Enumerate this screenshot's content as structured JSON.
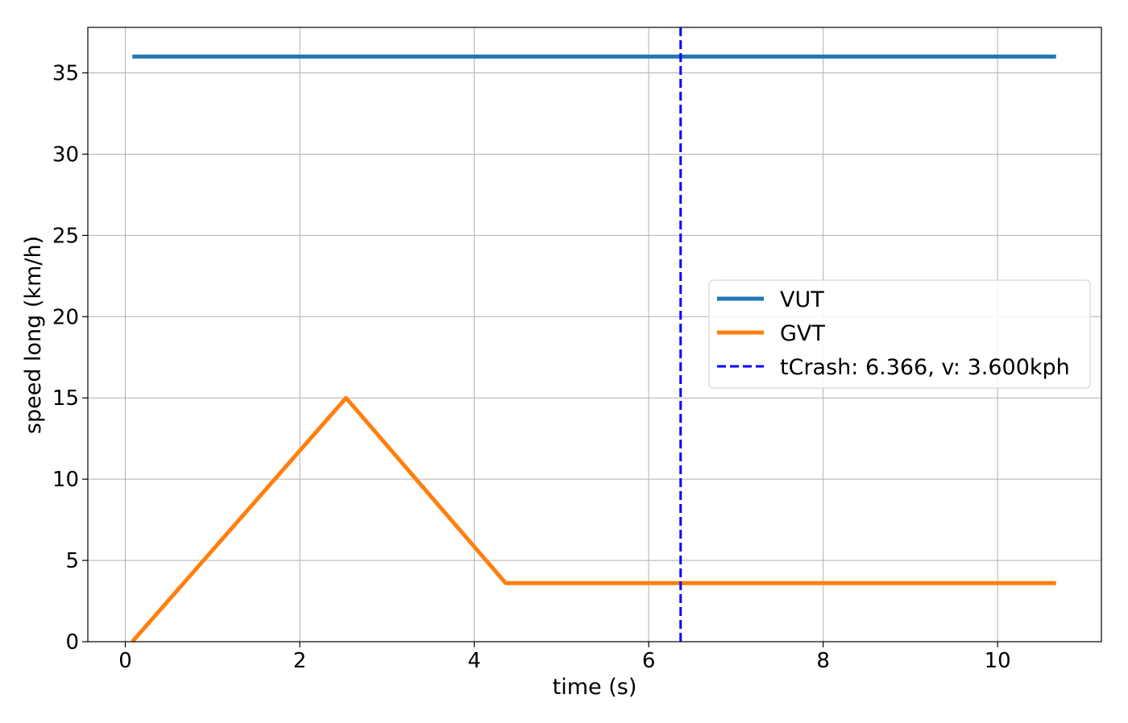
{
  "chart_data": {
    "type": "line",
    "title": "",
    "xlabel": "time (s)",
    "ylabel": "speed long (km/h)",
    "xlim": [
      -0.43,
      11.19
    ],
    "ylim": [
      0,
      37.8
    ],
    "xticks": [
      0,
      2,
      4,
      6,
      8,
      10
    ],
    "yticks": [
      0,
      5,
      10,
      15,
      20,
      25,
      30,
      35
    ],
    "grid": true,
    "legend_position": "center-right",
    "series": [
      {
        "name": "VUT",
        "color": "#1f77b4",
        "style": "solid",
        "x": [
          0.08,
          10.67
        ],
        "y": [
          36.0,
          36.0
        ]
      },
      {
        "name": "GVT",
        "color": "#ff7f0e",
        "style": "solid",
        "x": [
          0.08,
          2.53,
          4.36,
          10.67
        ],
        "y": [
          0.0,
          15.0,
          3.6,
          3.6
        ]
      }
    ],
    "vlines": [
      {
        "name": "tCrash: 6.366, v: 3.600kph",
        "x": 6.366,
        "color": "#0000ff",
        "style": "dashed"
      }
    ]
  }
}
